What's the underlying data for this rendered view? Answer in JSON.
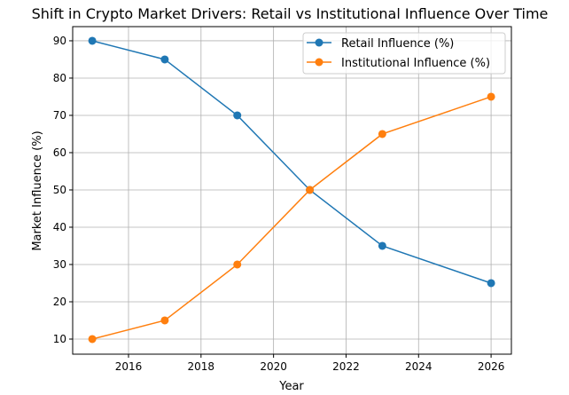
{
  "chart_data": {
    "type": "line",
    "title": "Shift in Crypto Market Drivers: Retail vs Institutional Influence Over Time",
    "xlabel": "Year",
    "ylabel": "Market Influence (%)",
    "x": [
      2015,
      2017,
      2019,
      2021,
      2023,
      2026
    ],
    "series": [
      {
        "name": "Retail Influence (%)",
        "color": "#1f77b4",
        "values": [
          90,
          85,
          70,
          50,
          35,
          25
        ]
      },
      {
        "name": "Institutional Influence (%)",
        "color": "#ff7f0e",
        "values": [
          10,
          15,
          30,
          50,
          65,
          75
        ]
      }
    ],
    "xlim": [
      2014.46,
      2026.56
    ],
    "ylim": [
      5.95,
      93.8
    ],
    "xticks": [
      "2016",
      "2018",
      "2020",
      "2022",
      "2024",
      "2026"
    ],
    "yticks": [
      "10",
      "20",
      "30",
      "40",
      "50",
      "60",
      "70",
      "80",
      "90"
    ],
    "grid": true,
    "legend": "top-right"
  }
}
